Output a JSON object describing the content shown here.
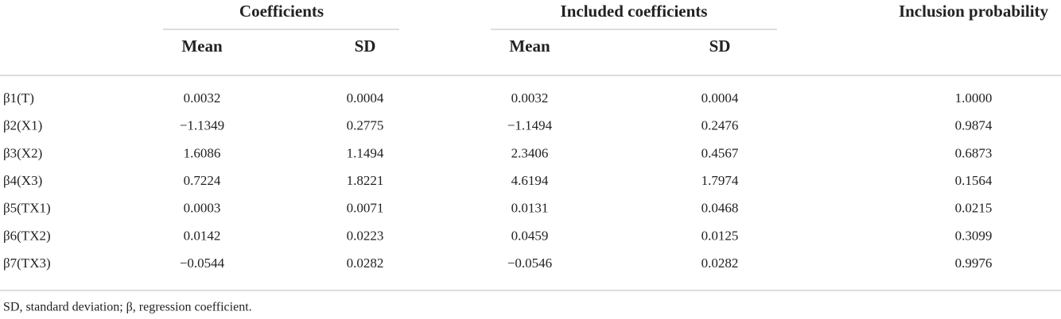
{
  "table": {
    "header": {
      "groups": [
        "Coefficients",
        "Included coefficients",
        "Inclusion probability"
      ],
      "subheaders": [
        "Mean",
        "SD",
        "Mean",
        "SD"
      ]
    },
    "rows": [
      [
        "β1(T)",
        "0.0032",
        "0.0004",
        "0.0032",
        "0.0004",
        "1.0000"
      ],
      [
        "β2(X1)",
        "−1.1349",
        "0.2775",
        "−1.1494",
        "0.2476",
        "0.9874"
      ],
      [
        "β3(X2)",
        "1.6086",
        "1.1494",
        "2.3406",
        "0.4567",
        "0.6873"
      ],
      [
        "β4(X3)",
        "0.7224",
        "1.8221",
        "4.6194",
        "1.7974",
        "0.1564"
      ],
      [
        "β5(TX1)",
        "0.0003",
        "0.0071",
        "0.0131",
        "0.0468",
        "0.0215"
      ],
      [
        "β6(TX2)",
        "0.0142",
        "0.0223",
        "0.0459",
        "0.0125",
        "0.3099"
      ],
      [
        "β7(TX3)",
        "−0.0544",
        "0.0282",
        "−0.0546",
        "0.0282",
        "0.9976"
      ]
    ]
  },
  "footnote": "SD, standard deviation; β, regression coefficient."
}
